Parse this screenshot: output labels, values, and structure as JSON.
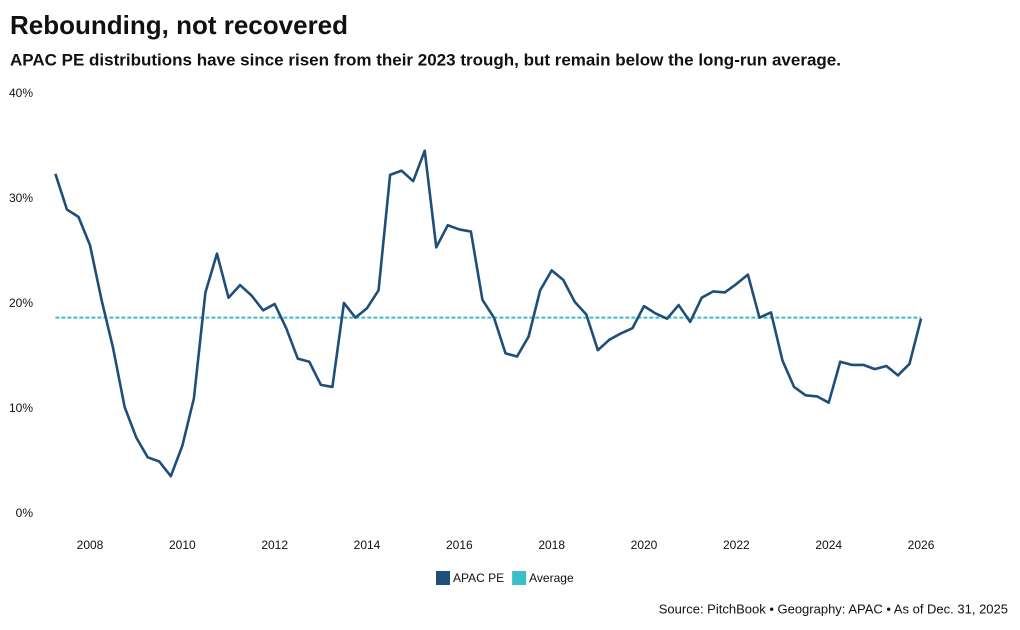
{
  "chart_data": {
    "type": "line",
    "title": "Rebounding, not recovered",
    "subtitle": "APAC PE distributions have since risen from their 2023 trough, but remain below the long-run average.",
    "source": "Source: PitchBook • Geography: APAC • As of Dec. 31, 2025",
    "x": [
      2007.25,
      2007.5,
      2007.75,
      2008,
      2008.25,
      2008.5,
      2008.75,
      2009,
      2009.25,
      2009.5,
      2009.75,
      2010,
      2010.25,
      2010.5,
      2010.75,
      2011,
      2011.25,
      2011.5,
      2011.75,
      2012,
      2012.25,
      2012.5,
      2012.75,
      2013,
      2013.25,
      2013.5,
      2013.75,
      2014,
      2014.25,
      2014.5,
      2014.75,
      2015,
      2015.25,
      2015.5,
      2015.75,
      2016,
      2016.25,
      2016.5,
      2016.75,
      2017,
      2017.25,
      2017.5,
      2017.75,
      2018,
      2018.25,
      2018.5,
      2018.75,
      2019,
      2019.25,
      2019.5,
      2019.75,
      2020,
      2020.25,
      2020.5,
      2020.75,
      2021,
      2021.25,
      2021.5,
      2021.75,
      2022,
      2022.25,
      2022.5,
      2022.75,
      2023,
      2023.25,
      2023.5,
      2023.75,
      2024,
      2024.25,
      2024.5,
      2024.75,
      2025,
      2025.25,
      2025.5,
      2025.75,
      2026
    ],
    "series": [
      {
        "name": "APAC PE",
        "color": "#1f4e79",
        "values": [
          32.4,
          29.0,
          28.3,
          25.6,
          20.4,
          15.8,
          10.2,
          7.3,
          5.4,
          5.0,
          3.6,
          6.5,
          11.0,
          21.1,
          24.8,
          20.6,
          21.8,
          20.8,
          19.4,
          20.0,
          17.7,
          14.8,
          14.5,
          12.3,
          12.1,
          20.1,
          18.7,
          19.6,
          21.3,
          32.3,
          32.7,
          31.7,
          34.6,
          25.4,
          27.5,
          27.1,
          26.9,
          20.4,
          18.7,
          15.3,
          15.0,
          16.9,
          21.3,
          23.2,
          22.3,
          20.2,
          19.0,
          15.6,
          16.6,
          17.2,
          17.7,
          19.8,
          19.1,
          18.6,
          19.9,
          18.3,
          20.6,
          21.2,
          21.1,
          21.9,
          22.8,
          18.7,
          19.2,
          14.6,
          12.1,
          11.3,
          11.2,
          10.6,
          14.5,
          14.2,
          14.2,
          13.8,
          14.1,
          13.2,
          14.3,
          18.6
        ]
      }
    ],
    "average": {
      "name": "Average",
      "color": "#3bbfc6",
      "value": 18.7
    },
    "xlim": [
      2006.8,
      2026.4
    ],
    "xticks": [
      2008,
      2010,
      2012,
      2014,
      2016,
      2018,
      2020,
      2022,
      2024,
      2026
    ],
    "ylim": [
      0,
      40
    ],
    "yticks": [
      {
        "value": 0,
        "label": "0%"
      },
      {
        "value": 10,
        "label": "10%"
      },
      {
        "value": 20,
        "label": "20%"
      },
      {
        "value": 30,
        "label": "30%"
      },
      {
        "value": 40,
        "label": "40%"
      }
    ],
    "grid": false
  }
}
